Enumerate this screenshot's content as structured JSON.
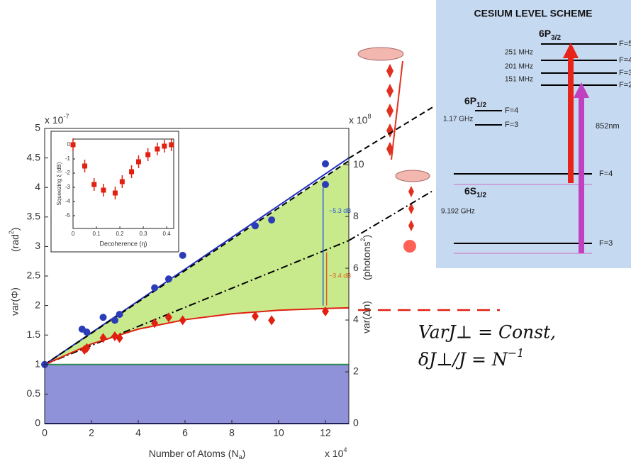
{
  "chart_data": [
    {
      "type": "line",
      "xlim": [
        0,
        13
      ],
      "xticks": [
        0,
        2,
        4,
        6,
        8,
        10,
        12
      ],
      "ylim": [
        0,
        5
      ],
      "yticks": [
        0,
        0.5,
        1,
        1.5,
        2,
        2.5,
        3,
        3.5,
        4,
        4.5,
        5
      ],
      "y2lim": [
        0,
        11.4
      ],
      "y2ticks": [
        0,
        2,
        4,
        6,
        8,
        10
      ],
      "x_label": {
        "text": "Number of Atoms (N",
        "sub": "a",
        "end": ")"
      },
      "x_multiplier": {
        "base": "x 10",
        "power": "4"
      },
      "y_label": "var(Φ)",
      "y_unit": {
        "base": "(rad",
        "power": "2",
        "end": ")"
      },
      "y_multiplier": {
        "base": "x 10",
        "power": "-7"
      },
      "y2_label": "var(Δn)",
      "y2_unit": {
        "base": "(photons",
        "power": "2",
        "end": ")"
      },
      "y2_multiplier": {
        "base": "x 10",
        "power": "8"
      },
      "annotations": [
        {
          "text": "−5.3 dB",
          "color": "#3060d0"
        },
        {
          "text": "−3.4 dB",
          "color": "#e06020"
        }
      ],
      "series": [
        {
          "x": [
            0,
            13
          ],
          "values": [
            1,
            1
          ],
          "color": "#2e8b57",
          "line": "solid",
          "fill": "#8f92d8",
          "fill_to": "zero"
        },
        {
          "x": [
            0,
            13
          ],
          "values": [
            0,
            0
          ],
          "color": "#1c1c80",
          "line": "solid"
        },
        {
          "x": [
            0,
            13
          ],
          "values": [
            1,
            4.5
          ],
          "color": "#2030c0",
          "line": "solid"
        },
        {
          "x": [
            0,
            13
          ],
          "values": [
            1,
            4.45
          ],
          "color": "#000000",
          "line": "dashed"
        },
        {
          "x": [
            0,
            13
          ],
          "values": [
            1,
            3.1
          ],
          "color": "#000000",
          "line": "dashdot"
        },
        {
          "x": [
            0,
            2,
            4,
            6,
            8,
            10,
            12,
            13
          ],
          "values": [
            1,
            1.35,
            1.6,
            1.76,
            1.86,
            1.92,
            1.95,
            1.96
          ],
          "color": "#e02010",
          "line": "solid",
          "fill": "#c9ea8c",
          "fill_to": 3
        },
        {
          "x": [
            0,
            1.6,
            1.8,
            2.5,
            3.0,
            3.2,
            4.7,
            5.3,
            5.9,
            9.0,
            9.7,
            12.0,
            12.0
          ],
          "values": [
            1.0,
            1.6,
            1.55,
            1.8,
            1.75,
            1.85,
            2.3,
            2.45,
            2.85,
            3.35,
            3.45,
            4.4,
            4.05
          ],
          "color": "#2b3cb8",
          "marker": "circle"
        },
        {
          "x": [
            1.7,
            1.8,
            2.5,
            3.0,
            3.2,
            4.7,
            5.3,
            5.9,
            9.0,
            9.7,
            12.0
          ],
          "values": [
            1.25,
            1.28,
            1.45,
            1.48,
            1.45,
            1.7,
            1.8,
            1.75,
            1.82,
            1.75,
            1.9
          ],
          "color": "#e02010",
          "marker": "diamond"
        }
      ]
    },
    {
      "type": "scatter",
      "xlim": [
        0,
        0.43
      ],
      "xticks": [
        0,
        0.1,
        0.2,
        0.3,
        0.4
      ],
      "ylim": [
        -5.9,
        0.4
      ],
      "yticks": [
        0,
        -1,
        -2,
        -3,
        -4,
        -5
      ],
      "x_label": "Decoherence (η)",
      "y_label": "Squeezing ξ (dB)",
      "x": [
        0,
        0.05,
        0.09,
        0.13,
        0.18,
        0.21,
        0.25,
        0.28,
        0.32,
        0.36,
        0.39,
        0.42
      ],
      "values": [
        0,
        -1.5,
        -2.8,
        -3.2,
        -3.4,
        -2.6,
        -1.9,
        -1.2,
        -0.7,
        -0.3,
        -0.1,
        0
      ],
      "color": "#e02010"
    }
  ],
  "diagram": {
    "title": "CESIUM LEVEL SCHEME",
    "states": [
      {
        "name": "6P",
        "sub": "3/2"
      },
      {
        "name": "6P",
        "sub": "1/2"
      },
      {
        "name": "6S",
        "sub": "1/2"
      }
    ],
    "F_labels": [
      "F=5",
      "F=4",
      "F=3",
      "F=2",
      "F=4",
      "F=3",
      "F=4",
      "F=3"
    ],
    "splittings": [
      "251 MHz",
      "201 MHz",
      "151 MHz",
      "1.17 GHz",
      "9.192 GHz"
    ],
    "wavelength": "852nm"
  },
  "equations": [
    {
      "text": "VarJ⊥ = Const,"
    },
    {
      "base": "δJ⊥/J = N",
      "power": "−1"
    }
  ]
}
